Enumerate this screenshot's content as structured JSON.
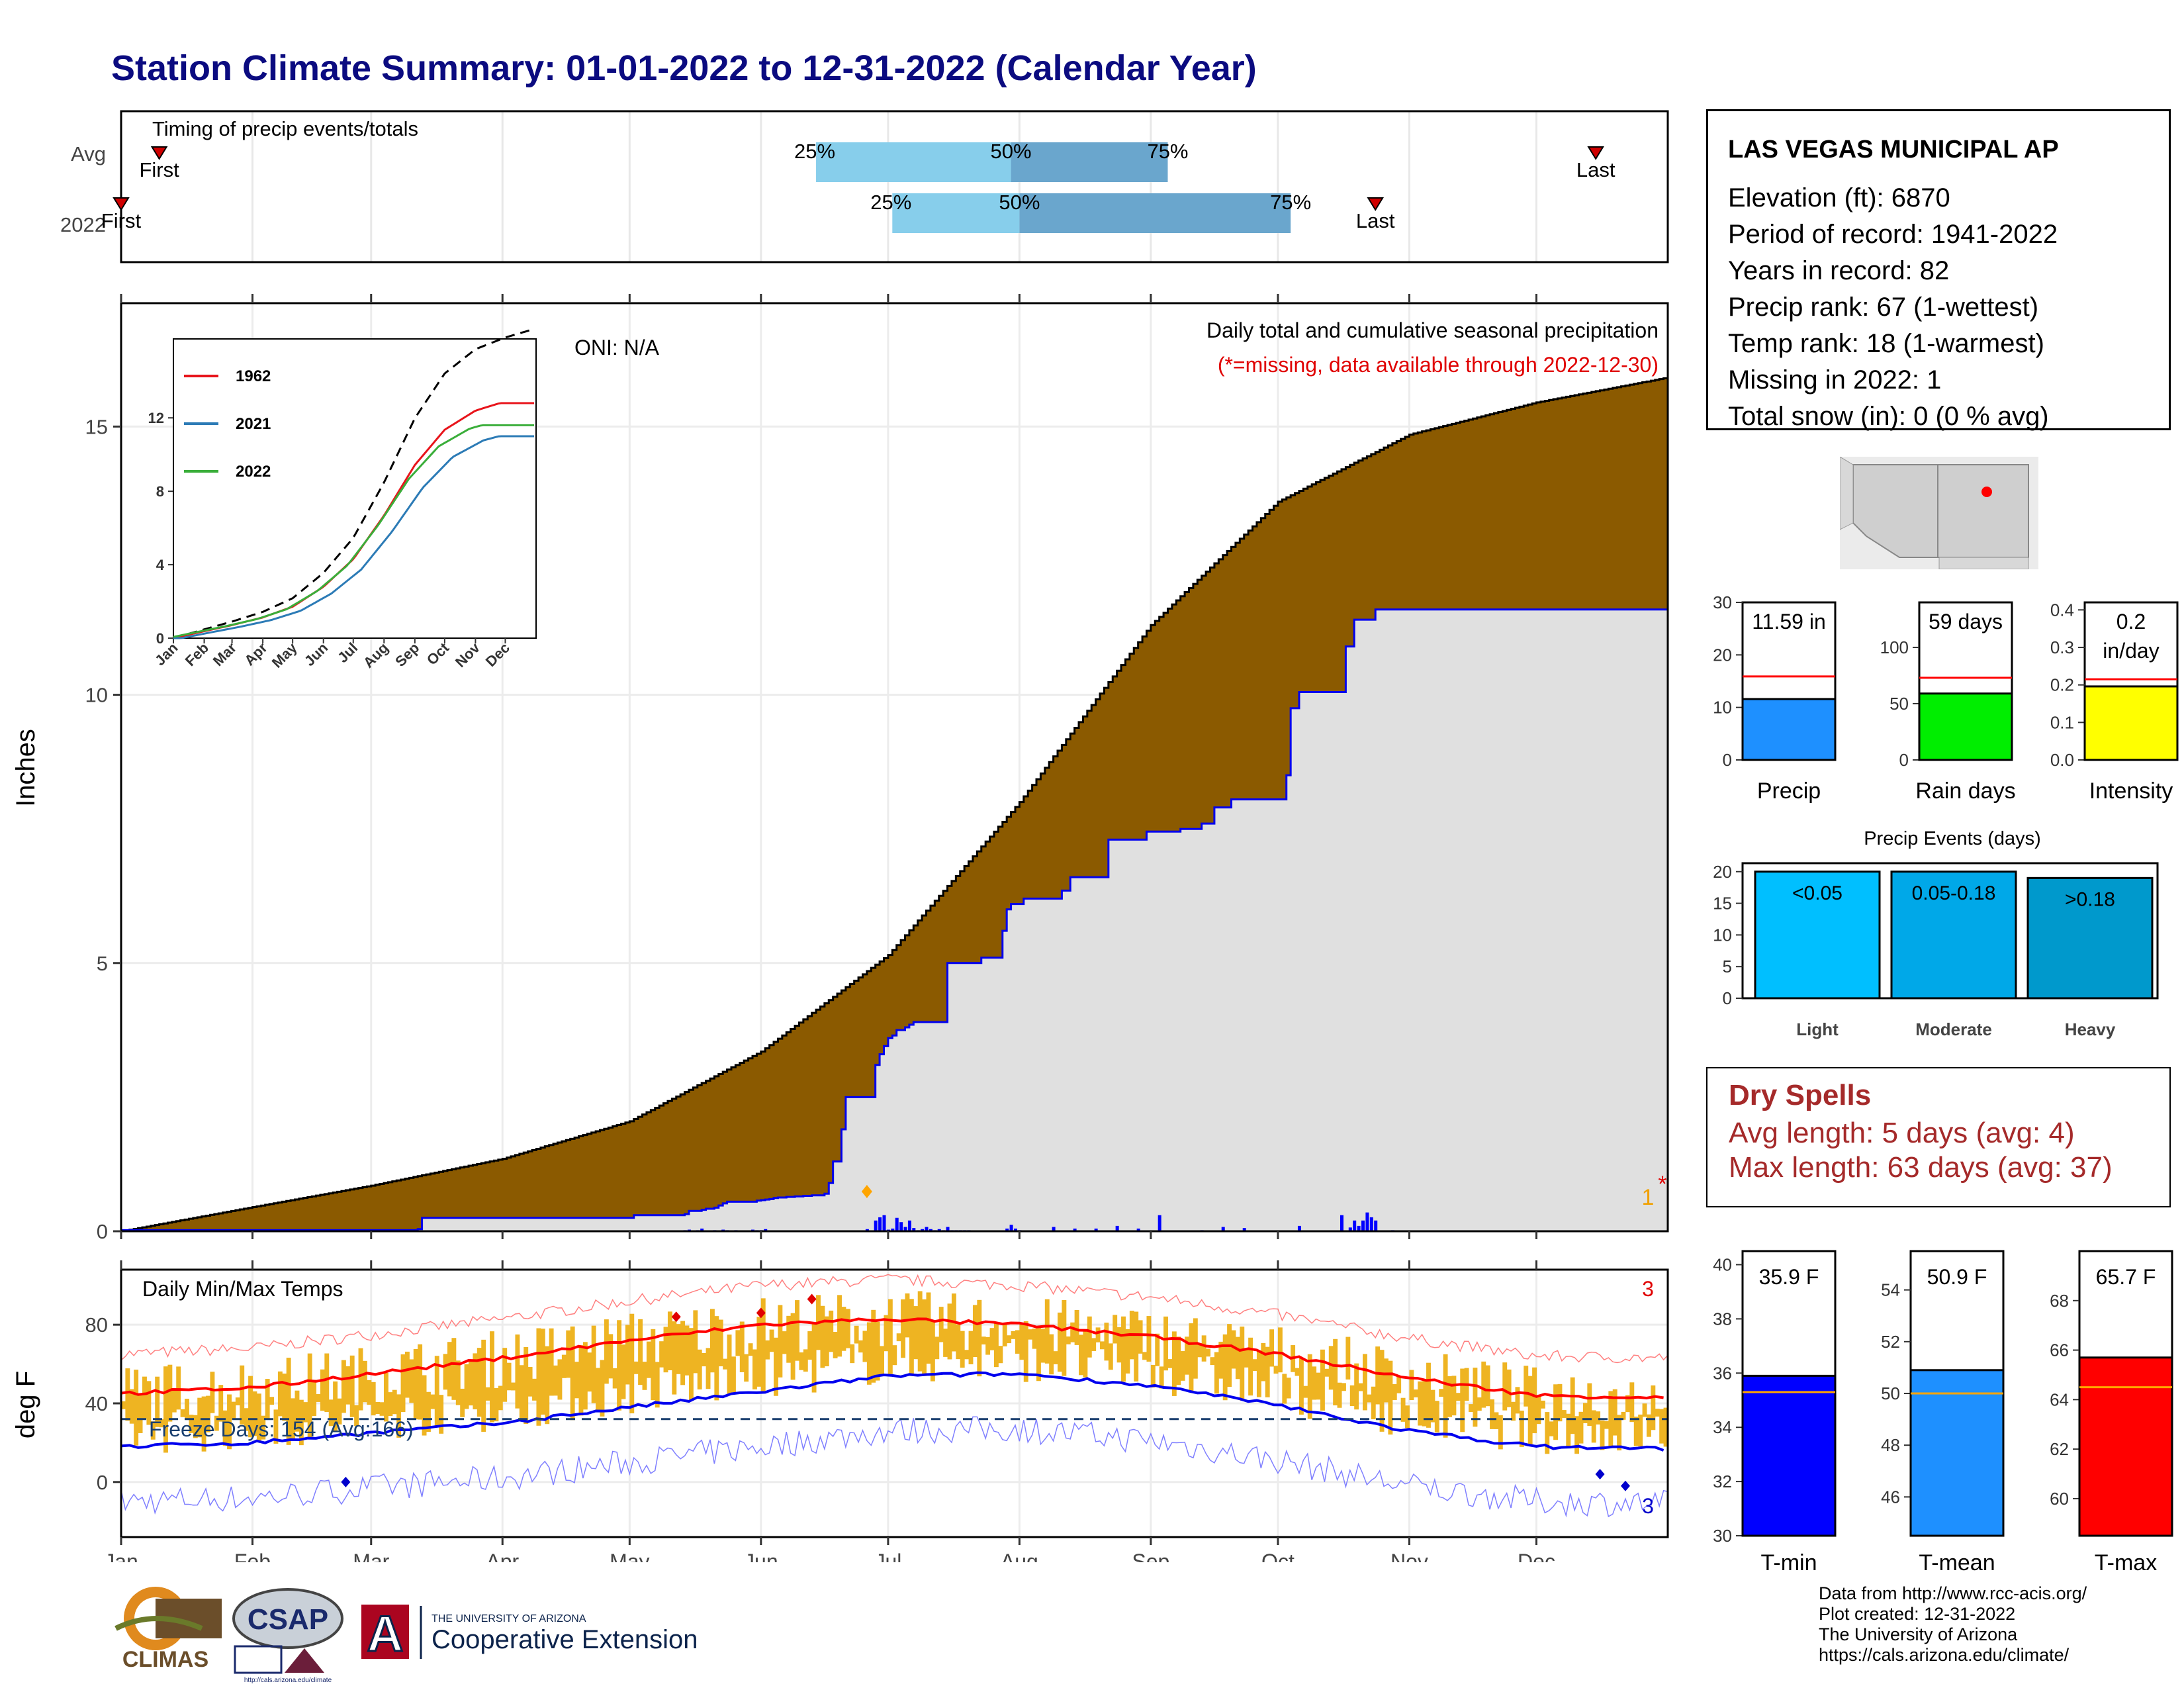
{
  "title": "Station Climate Summary: 01-01-2022 to 12-31-2022 (Calendar Year)",
  "timing": {
    "label": "Timing of precip events/totals",
    "rows": [
      "Avg",
      "2022"
    ],
    "avg": {
      "p25": "25%",
      "p50": "50%",
      "p75": "75%",
      "first": "First",
      "last": "Last",
      "p25_day": 164,
      "p50_day": 210,
      "p75_day": 247,
      "first_day": 9,
      "last_day": 348
    },
    "y2022": {
      "p25": "25%",
      "p50": "50%",
      "p75": "75%",
      "first": "First",
      "last": "Last",
      "p25_day": 182,
      "p50_day": 212,
      "p75_day": 276,
      "first_day": 0,
      "last_day": 296
    }
  },
  "precip_panel": {
    "ylabel": "Inches",
    "oni": "ONI: N/A",
    "caption": "Daily total and cumulative seasonal precipitation",
    "missing_note": "(*=missing, data available through 2022-12-30)",
    "missing_count": "1",
    "missing_star": "*",
    "yticks": [
      "0",
      "5",
      "10",
      "15"
    ]
  },
  "inset": {
    "series": [
      "1962",
      "2021",
      "2022"
    ],
    "colors": [
      "#e8141b",
      "#2c7bb6",
      "#3aae3a"
    ],
    "yticks": [
      "0",
      "4",
      "8",
      "12"
    ],
    "months": [
      "Jan",
      "Feb",
      "Mar",
      "Apr",
      "May",
      "Jun",
      "Jul",
      "Aug",
      "Sep",
      "Oct",
      "Nov",
      "Dec"
    ]
  },
  "temp_panel": {
    "ylabel": "deg F",
    "label": "Daily Min/Max Temps",
    "freeze": "Freeze Days: 154 (Avg:166)",
    "record_high_count": "3",
    "record_low_count": "3",
    "yticks": [
      "0",
      "40",
      "80"
    ]
  },
  "months": [
    "Jan",
    "Feb",
    "Mar",
    "Apr",
    "May",
    "Jun",
    "Jul",
    "Aug",
    "Sep",
    "Oct",
    "Nov",
    "Dec"
  ],
  "station": {
    "name": "LAS VEGAS MUNICIPAL AP",
    "lines": [
      "Elevation (ft): 6870",
      "Period of record: 1941-2022",
      "Years in record: 82",
      "Precip rank: 67 (1-wettest)",
      "Temp rank: 18 (1-warmest)",
      "Missing in 2022: 1",
      "Total snow (in): 0 (0 % avg)"
    ]
  },
  "summary_bars": [
    {
      "label": "Precip",
      "value_text": "11.59 in",
      "value": 11.59,
      "avg": 15.9,
      "max": 30,
      "ticks": [
        "0",
        "10",
        "20",
        "30"
      ],
      "color": "#1e90ff"
    },
    {
      "label": "Rain days",
      "value_text": "59 days",
      "value": 59,
      "avg": 73,
      "max": 140,
      "ticks": [
        "0",
        "50",
        "100"
      ],
      "color": "#00ee00"
    },
    {
      "label": "Intensity",
      "value_text": "0.2",
      "value_text2": "in/day",
      "value": 0.196,
      "avg": 0.215,
      "max": 0.42,
      "ticks": [
        "0.0",
        "0.1",
        "0.2",
        "0.3",
        "0.4"
      ],
      "color": "#ffff00"
    }
  ],
  "precip_events": {
    "title": "Precip Events (days)",
    "yticks": [
      "0",
      "5",
      "10",
      "15",
      "20"
    ],
    "bars": [
      {
        "label": "Light",
        "range": "<0.05",
        "value": 20,
        "color": "#00bfff"
      },
      {
        "label": "Moderate",
        "range": "0.05-0.18",
        "value": 20,
        "color": "#00a8e8"
      },
      {
        "label": "Heavy",
        "range": ">0.18",
        "value": 19,
        "color": "#0099cc"
      }
    ]
  },
  "dry_spells": {
    "title": "Dry Spells",
    "avg_length": "Avg length: 5 days (avg: 4)",
    "max_length": "Max length: 63 days (avg: 37)"
  },
  "temp_bars": [
    {
      "label": "T-min",
      "value_text": "35.9 F",
      "value": 35.9,
      "avg": 35.3,
      "min": 30,
      "max": 40.5,
      "ticks": [
        "30",
        "32",
        "34",
        "36",
        "38",
        "40"
      ],
      "color": "#0000ff"
    },
    {
      "label": "T-mean",
      "value_text": "50.9 F",
      "value": 50.9,
      "avg": 50.0,
      "min": 44.5,
      "max": 55.5,
      "ticks": [
        "46",
        "48",
        "50",
        "52",
        "54"
      ],
      "color": "#1e90ff"
    },
    {
      "label": "T-max",
      "value_text": "65.7 F",
      "value": 65.7,
      "avg": 64.5,
      "min": 58.5,
      "max": 70,
      "ticks": [
        "60",
        "62",
        "64",
        "66",
        "68"
      ],
      "color": "#ff0000"
    }
  ],
  "footer": {
    "lines": [
      "Data from http://www.rcc-acis.org/",
      "Plot created: 12-31-2022",
      "The University of Arizona",
      "https://cals.arizona.edu/climate/"
    ]
  },
  "logos": {
    "climas": "CLIMAS",
    "csap": "CSAP",
    "csap_url": "http://cals.arizona.edu/climate",
    "ua_line1": "THE UNIVERSITY OF ARIZONA",
    "ua_line2": "Cooperative Extension",
    "ua_letter": "A"
  },
  "chart_data": {
    "type": "area",
    "title": "Daily total and cumulative seasonal precipitation",
    "ylabel": "Inches",
    "ylim": [
      0,
      17.3
    ],
    "avg_cumulative": {
      "day": [
        0,
        31,
        59,
        90,
        120,
        151,
        181,
        212,
        243,
        273,
        304,
        334,
        364
      ],
      "value": [
        0,
        0.45,
        0.85,
        1.35,
        2.05,
        3.35,
        5.15,
        8.0,
        11.3,
        13.6,
        14.85,
        15.45,
        15.9
      ]
    },
    "cumulative_2022": {
      "day": [
        0,
        70,
        71,
        110,
        111,
        120,
        121,
        133,
        134,
        137,
        138,
        140,
        141,
        142,
        143,
        150,
        151,
        152,
        153,
        154,
        155,
        156,
        157,
        158,
        159,
        160,
        161,
        162,
        163,
        164,
        166,
        167,
        168,
        170,
        171,
        178,
        179,
        180,
        181,
        182,
        183,
        185,
        186,
        187,
        195,
        196,
        200,
        203,
        205,
        206,
        208,
        209,
        210,
        213,
        222,
        224,
        228,
        232,
        233,
        240,
        242,
        250,
        255,
        258,
        262,
        275,
        276,
        278,
        289,
        291,
        296,
        365
      ],
      "value": [
        0.02,
        0.04,
        0.25,
        0.25,
        0.25,
        0.25,
        0.3,
        0.32,
        0.38,
        0.4,
        0.42,
        0.44,
        0.48,
        0.52,
        0.55,
        0.57,
        0.58,
        0.59,
        0.6,
        0.62,
        0.63,
        0.63,
        0.64,
        0.64,
        0.65,
        0.65,
        0.66,
        0.66,
        0.67,
        0.67,
        0.7,
        0.9,
        1.3,
        1.9,
        2.5,
        3.1,
        3.3,
        3.45,
        3.6,
        3.65,
        3.75,
        3.8,
        3.85,
        3.9,
        5.0,
        5.0,
        5.0,
        5.1,
        5.1,
        5.1,
        5.6,
        6.0,
        6.1,
        6.2,
        6.35,
        6.6,
        6.6,
        6.6,
        7.3,
        7.3,
        7.45,
        7.5,
        7.6,
        7.9,
        8.05,
        8.5,
        9.75,
        10.05,
        10.9,
        11.4,
        11.59,
        11.59
      ]
    },
    "daily_bars": {
      "day": [
        133,
        134,
        136,
        137,
        140,
        142,
        143,
        145,
        149,
        150,
        151,
        152,
        176,
        178,
        179,
        180,
        181,
        182,
        183,
        184,
        185,
        186,
        187,
        188,
        189,
        190,
        191,
        192,
        193,
        194,
        195,
        196,
        197,
        198,
        199,
        200,
        209,
        210,
        211,
        212,
        220,
        225,
        230,
        235,
        240,
        245,
        255,
        260,
        265,
        278,
        288,
        290,
        291,
        292,
        293,
        294,
        295,
        296,
        300
      ],
      "value": [
        0.02,
        0.03,
        0.02,
        0.05,
        0.02,
        0.03,
        0.02,
        0.02,
        0.03,
        0.02,
        0.02,
        0.04,
        0.04,
        0.2,
        0.26,
        0.3,
        0.03,
        0.05,
        0.25,
        0.17,
        0.08,
        0.2,
        0.06,
        0.02,
        0.04,
        0.08,
        0.04,
        0.02,
        0.04,
        0.02,
        0.08,
        0.02,
        0.02,
        0.02,
        0.02,
        0.02,
        0.05,
        0.12,
        0.05,
        0.02,
        0.08,
        0.05,
        0.05,
        0.1,
        0.05,
        0.3,
        0.02,
        0.08,
        0.06,
        0.1,
        0.3,
        0.07,
        0.2,
        0.1,
        0.2,
        0.35,
        0.26,
        0.2,
        0.02
      ]
    },
    "temp": {
      "ylim": [
        -28,
        108
      ],
      "avg_max": {
        "day": [
          0,
          31,
          59,
          90,
          120,
          151,
          181,
          212,
          243,
          273,
          304,
          334,
          364
        ],
        "value": [
          45,
          48,
          55,
          63,
          72,
          80,
          83,
          80,
          74,
          65,
          53,
          44,
          43
        ]
      },
      "avg_min": {
        "day": [
          0,
          31,
          59,
          90,
          120,
          151,
          181,
          212,
          243,
          273,
          304,
          334,
          364
        ],
        "value": [
          18,
          20,
          25,
          30,
          38,
          46,
          54,
          55,
          49,
          39,
          26,
          18,
          17
        ]
      },
      "freeze_line": 32
    }
  }
}
